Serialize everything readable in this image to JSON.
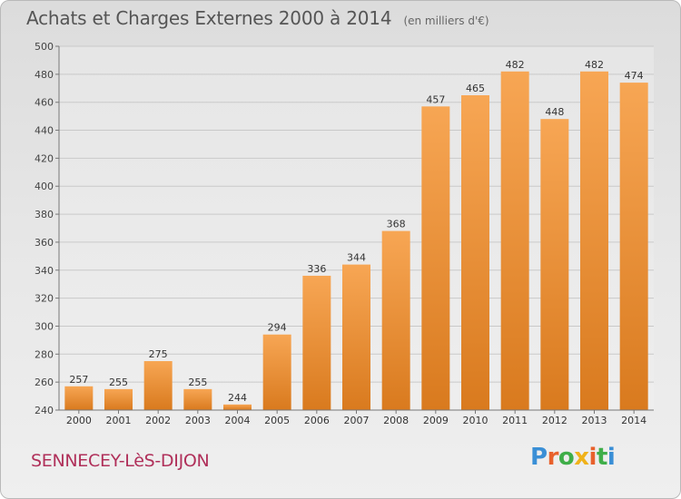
{
  "header": {
    "title": "Achats et Charges Externes 2000 à 2014",
    "subtitle": "(en milliers d'€)"
  },
  "footer": {
    "commune": "SENNECEY-LèS-DIJON",
    "logo_text": "Proxiti"
  },
  "colors": {
    "bar_top": "#f7a654",
    "bar_bottom": "#d97a1e",
    "grid": "#c9c9c9",
    "commune": "#b0305a"
  },
  "chart_data": {
    "type": "bar",
    "title": "Achats et Charges Externes 2000 à 2014",
    "subtitle": "(en milliers d'€)",
    "categories": [
      "2000",
      "2001",
      "2002",
      "2003",
      "2004",
      "2005",
      "2006",
      "2007",
      "2008",
      "2009",
      "2010",
      "2011",
      "2012",
      "2013",
      "2014"
    ],
    "values": [
      257,
      255,
      275,
      255,
      244,
      294,
      336,
      344,
      368,
      457,
      465,
      482,
      448,
      482,
      474
    ],
    "ylim": [
      240,
      500
    ],
    "yticks": [
      240,
      260,
      280,
      300,
      320,
      340,
      360,
      380,
      400,
      420,
      440,
      460,
      480,
      500
    ],
    "grid": true,
    "data_labels": true
  }
}
